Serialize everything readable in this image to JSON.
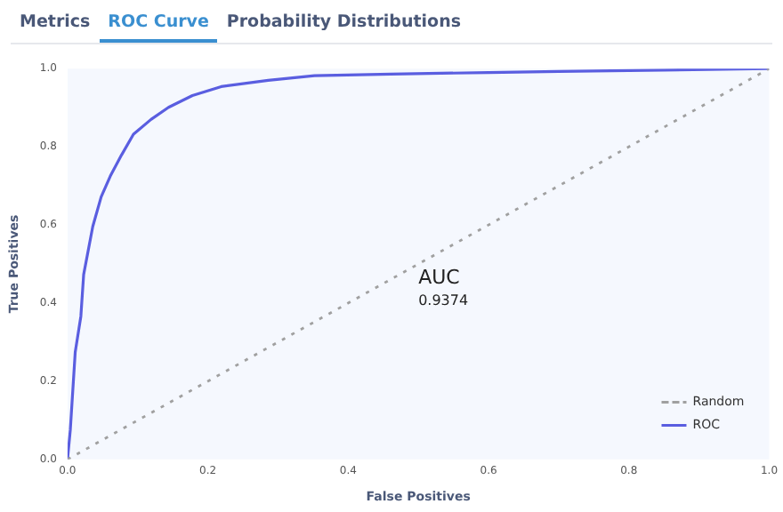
{
  "chart_data": {
    "type": "line",
    "xlabel": "False Positives",
    "ylabel": "True Positives",
    "xlim": [
      0,
      1
    ],
    "ylim": [
      0,
      1
    ],
    "xticks": [
      {
        "value": 0,
        "label": "0.0"
      },
      0.2,
      0.4,
      0.6,
      0.8,
      {
        "value": 1,
        "label": "1.0"
      }
    ],
    "yticks": [
      {
        "value": 0,
        "label": "0.0"
      },
      0.2,
      0.4,
      0.6,
      0.8,
      {
        "value": 1,
        "label": "1.0"
      }
    ],
    "grid": false,
    "legend": "bottom right",
    "marker": "none",
    "annotations": [
      "Metrics",
      "ROC Curve",
      "Probability Distributions",
      "AUC",
      "0.9374"
    ],
    "series": [
      {
        "name": "Random",
        "color": "#a0a0a0",
        "line_style": "dotted",
        "x": [
          0,
          1
        ],
        "values": [
          0,
          1
        ]
      },
      {
        "name": "ROC",
        "color": "#5a5ee0",
        "line_style": "solid",
        "x": [
          0,
          0.004,
          0.011,
          0.019,
          0.023,
          0.036,
          0.048,
          0.061,
          0.077,
          0.094,
          0.119,
          0.144,
          0.178,
          0.219,
          0.286,
          0.352,
          0.461,
          0.6,
          0.7,
          0.85,
          1
        ],
        "values": [
          0,
          0.076,
          0.275,
          0.366,
          0.473,
          0.596,
          0.672,
          0.725,
          0.779,
          0.832,
          0.87,
          0.901,
          0.931,
          0.954,
          0.97,
          0.982,
          0.986,
          0.99,
          0.993,
          0.996,
          1
        ]
      }
    ]
  }
}
